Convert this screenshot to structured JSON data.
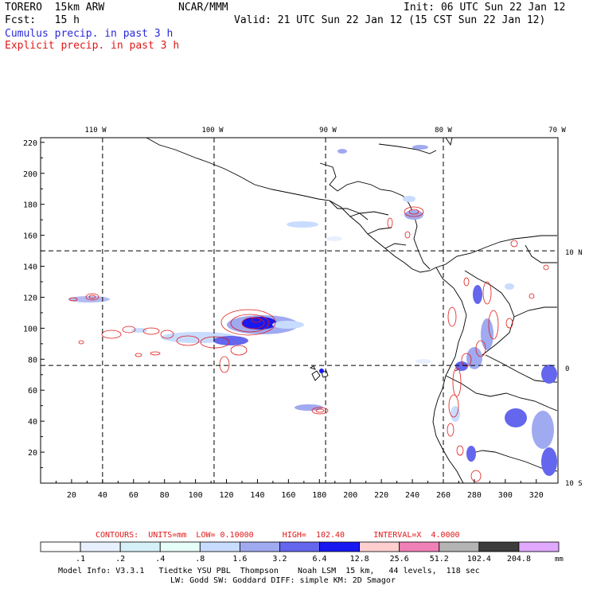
{
  "header": {
    "model": "TORERO  15km ARW",
    "org": "NCAR/MMM",
    "init": "Init: 06 UTC Sun 22 Jan 12",
    "fcst": "Fcst:   15 h",
    "valid": "Valid: 21 UTC Sun 22 Jan 12 (15 CST Sun 22 Jan 12)",
    "legend_cumulus": "Cumulus precip. in past 3 h",
    "legend_explicit": "Explicit precip. in past 3 h"
  },
  "map": {
    "top_lon_labels": [
      "110 W",
      "100 W",
      "90 W",
      "80 W",
      "70 W"
    ],
    "right_lat_labels": [
      "10 N",
      "0",
      "10 S"
    ],
    "y_ticks": [
      "20",
      "40",
      "60",
      "80",
      "100",
      "120",
      "140",
      "160",
      "180",
      "200",
      "220"
    ],
    "x_ticks": [
      "20",
      "40",
      "60",
      "80",
      "100",
      "120",
      "140",
      "160",
      "180",
      "200",
      "220",
      "240",
      "260",
      "280",
      "300",
      "320"
    ],
    "grid_lon_x": [
      40,
      112,
      184,
      260
    ],
    "grid_lat_y": [
      150,
      76
    ]
  },
  "colorbar": {
    "contours_text": "CONTOURS:  UNITS=mm  LOW= 0.10000      HIGH=  102.40      INTERVAL=X  4.0000",
    "levels": [
      ".1",
      ".2",
      ".4",
      ".8",
      "1.6",
      "3.2",
      "6.4",
      "12.8",
      "25.6",
      "51.2",
      "102.4",
      "204.8"
    ],
    "units": "mm",
    "colors": [
      "#ffffff",
      "#e8f0ff",
      "#d6f0f8",
      "#e6fff8",
      "#c8dcff",
      "#a0aaf0",
      "#6466ee",
      "#1818f0",
      "#ffcfcf",
      "#f080b8",
      "#b4b4b4",
      "#3c3c3c",
      "#e0a8ff"
    ]
  },
  "model_info": {
    "line1": "Model Info: V3.3.1   Tiedtke YSU PBL  Thompson    Noah LSM  15 km,   44 levels,  118 sec",
    "line2": "LW: Godd SW: Goddard DIFF: simple KM: 2D Smagor"
  }
}
